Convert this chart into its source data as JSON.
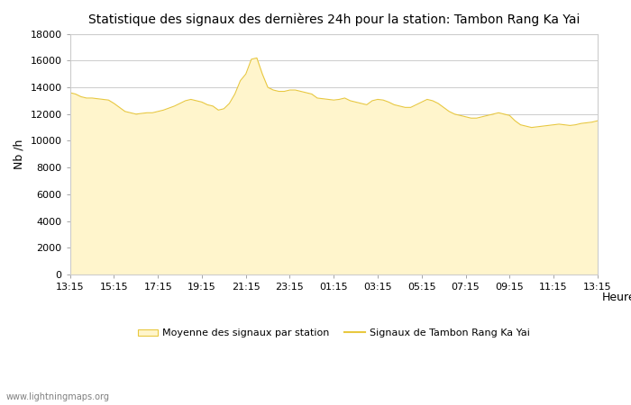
{
  "title": "Statistique des signaux des dernières 24h pour la station: Tambon Rang Ka Yai",
  "xlabel": "Heure",
  "ylabel": "Nb /h",
  "ylim": [
    0,
    18000
  ],
  "yticks": [
    0,
    2000,
    4000,
    6000,
    8000,
    10000,
    12000,
    14000,
    16000,
    18000
  ],
  "x_labels": [
    "13:15",
    "15:15",
    "17:15",
    "19:15",
    "21:15",
    "23:15",
    "01:15",
    "03:15",
    "05:15",
    "07:15",
    "09:15",
    "11:15",
    "13:15"
  ],
  "fill_color": "#FFF5CC",
  "line_color": "#E8C840",
  "background_color": "#ffffff",
  "grid_color": "#cccccc",
  "watermark": "www.lightningmaps.org",
  "legend_fill_label": "Moyenne des signaux par station",
  "legend_line_label": "Signaux de Tambon Rang Ka Yai",
  "y_values": [
    13600,
    13500,
    13300,
    13200,
    13200,
    13150,
    13100,
    13050,
    12800,
    12500,
    12200,
    12100,
    12000,
    12050,
    12100,
    12100,
    12200,
    12300,
    12450,
    12600,
    12800,
    13000,
    13100,
    13000,
    12900,
    12700,
    12600,
    12300,
    12400,
    12800,
    13500,
    14500,
    15000,
    16100,
    16200,
    15000,
    14000,
    13800,
    13700,
    13700,
    13800,
    13800,
    13700,
    13600,
    13500,
    13200,
    13150,
    13100,
    13050,
    13100,
    13200,
    13000,
    12900,
    12800,
    12700,
    13000,
    13100,
    13050,
    12900,
    12700,
    12600,
    12500,
    12500,
    12700,
    12900,
    13100,
    13000,
    12800,
    12500,
    12200,
    12000,
    11900,
    11800,
    11700,
    11700,
    11800,
    11900,
    12000,
    12100,
    12000,
    11900,
    11500,
    11200,
    11100,
    11000,
    11050,
    11100,
    11150,
    11200,
    11250,
    11200,
    11150,
    11200,
    11300,
    11350,
    11400,
    11500
  ]
}
